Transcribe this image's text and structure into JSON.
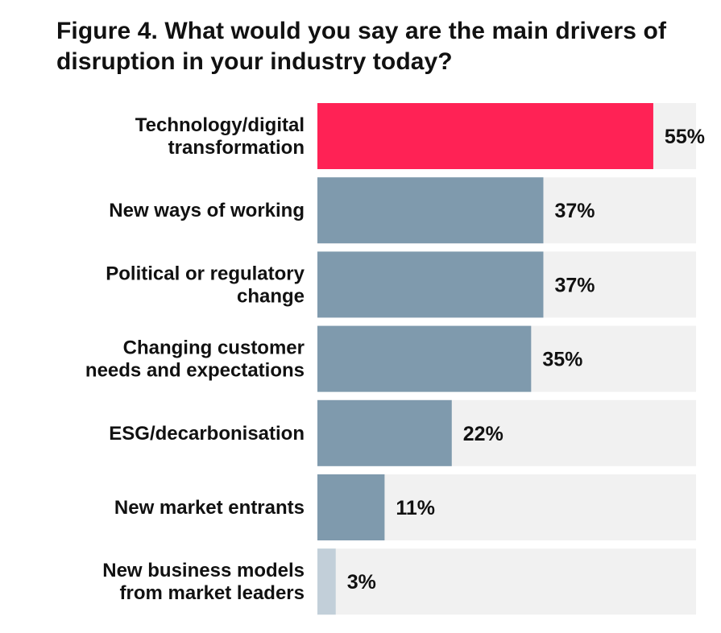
{
  "title_lines": [
    "Figure 4. What would you say are the main drivers of",
    "disruption in your industry today?"
  ],
  "colors": {
    "highlight": "#ff2255",
    "bar": "#7f9aad",
    "bar_light": "#c2cfd9",
    "track": "#f1f1f1"
  },
  "chart_data": {
    "type": "bar",
    "orientation": "horizontal",
    "title": "Figure 4. What would you say are the main drivers of disruption in your industry today?",
    "categories": [
      [
        "Technology/digital",
        "transformation"
      ],
      [
        "New ways of working"
      ],
      [
        "Political or regulatory",
        "change"
      ],
      [
        "Changing customer",
        "needs and expectations"
      ],
      [
        "ESG/decarbonisation"
      ],
      [
        "New market entrants"
      ],
      [
        "New business models",
        "from market leaders"
      ]
    ],
    "values": [
      55,
      37,
      37,
      35,
      22,
      11,
      3
    ],
    "value_labels": [
      "55%",
      "37%",
      "37%",
      "35%",
      "22%",
      "11%",
      "3%"
    ],
    "xlim": [
      0,
      62
    ],
    "highlight_index": 0,
    "light_index": 6,
    "grid": false
  }
}
